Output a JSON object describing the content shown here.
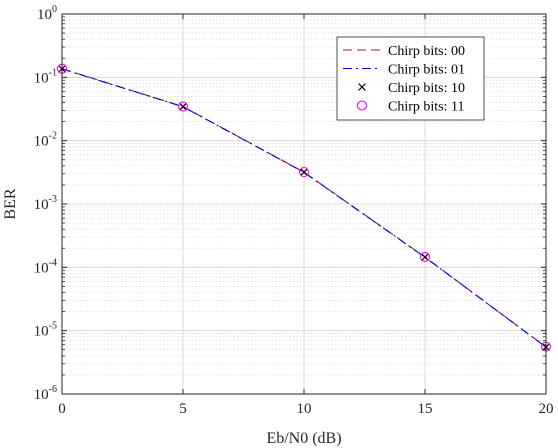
{
  "chart_data": {
    "type": "line",
    "xlabel": "Eb/N0 (dB)",
    "ylabel": "BER",
    "y_scale": "log",
    "xlim": [
      0,
      20
    ],
    "ylim": [
      1e-06,
      1
    ],
    "x_ticks": [
      0,
      5,
      10,
      15,
      20
    ],
    "x_tick_labels": [
      "0",
      "5",
      "10",
      "15",
      "20"
    ],
    "y_ticks": [
      {
        "value": 1,
        "base": "10",
        "exp": "0"
      },
      {
        "value": 0.1,
        "base": "10",
        "exp": "-1"
      },
      {
        "value": 0.01,
        "base": "10",
        "exp": "-2"
      },
      {
        "value": 0.001,
        "base": "10",
        "exp": "-3"
      },
      {
        "value": 0.0001,
        "base": "10",
        "exp": "-4"
      },
      {
        "value": 1e-05,
        "base": "10",
        "exp": "-5"
      },
      {
        "value": 1e-06,
        "base": "10",
        "exp": "-6"
      }
    ],
    "grid": true,
    "minor_grid": true,
    "legend_position": "top-right",
    "x": [
      0,
      5,
      10,
      15,
      20
    ],
    "series": [
      {
        "name": "Chirp bits: 00",
        "style": "dashed",
        "marker": "none",
        "color": "#a2142f",
        "values": [
          0.137,
          0.0345,
          0.00318,
          0.000145,
          5.5e-06
        ]
      },
      {
        "name": "Chirp bits: 01",
        "style": "dashdot",
        "marker": "none",
        "color": "#0000ff",
        "values": [
          0.136,
          0.0343,
          0.00316,
          0.000144,
          5.5e-06
        ]
      },
      {
        "name": "Chirp bits: 10",
        "style": "none",
        "marker": "x",
        "color": "#000000",
        "values": [
          0.136,
          0.0344,
          0.00318,
          0.000145,
          5.5e-06
        ]
      },
      {
        "name": "Chirp bits: 11",
        "style": "none",
        "marker": "circle",
        "color": "#ff00ff",
        "values": [
          0.137,
          0.0345,
          0.00319,
          0.000146,
          5.6e-06
        ]
      }
    ]
  }
}
